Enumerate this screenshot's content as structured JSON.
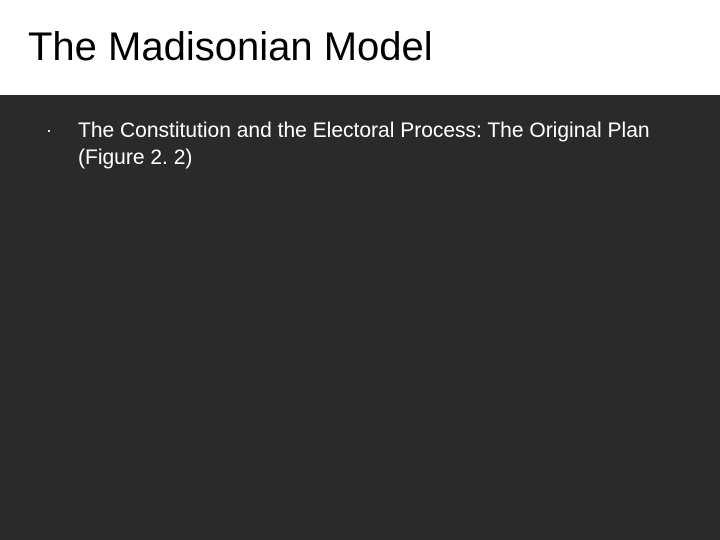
{
  "slide": {
    "title": "The Madisonian Model",
    "title_fontsize": 40,
    "title_color": "#000000",
    "title_band_bg": "#ffffff",
    "body_band_bg": "#2a2a2a",
    "body_text_color": "#ffffff",
    "body_fontsize": 21,
    "bullets": [
      {
        "marker": "·",
        "text": "The Constitution and the Electoral Process: The Original Plan (Figure 2. 2)"
      }
    ]
  }
}
